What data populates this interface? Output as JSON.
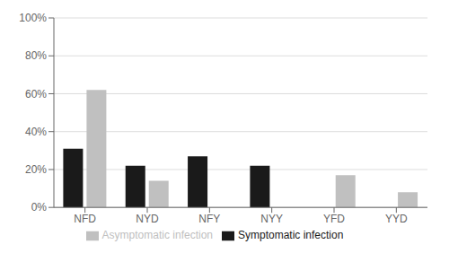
{
  "chart_data": {
    "type": "bar",
    "categories": [
      "NFD",
      "NYD",
      "NFY",
      "NYY",
      "YFD",
      "YYD"
    ],
    "series": [
      {
        "name": "Symptomatic infection",
        "color": "#1a1a1a",
        "values": [
          31,
          22,
          27,
          22,
          0,
          0
        ]
      },
      {
        "name": "Asymptomatic infection",
        "color": "#c0c0c0",
        "values": [
          62,
          14,
          0,
          0,
          17,
          8
        ]
      }
    ],
    "ylim": [
      0,
      100
    ],
    "yticks": [
      {
        "value": 0,
        "label": "0%"
      },
      {
        "value": 20,
        "label": "20%"
      },
      {
        "value": 40,
        "label": "40%"
      },
      {
        "value": 60,
        "label": "60%"
      },
      {
        "value": 80,
        "label": "80%"
      },
      {
        "value": 100,
        "label": "100%"
      }
    ],
    "grid": true,
    "legend": "bottom"
  }
}
